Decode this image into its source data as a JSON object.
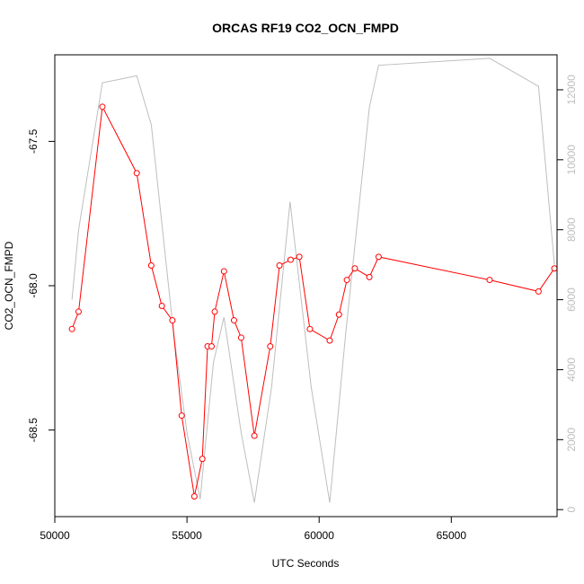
{
  "chart_data": {
    "type": "line",
    "title": "ORCAS RF19 CO2_OCN_FMPD",
    "xlabel": "UTC Seconds",
    "ylabel": "CO2_OCN_FMPD",
    "xlim": [
      50000,
      69000
    ],
    "ylim": [
      -68.8,
      -67.2
    ],
    "y2lim": [
      -200,
      13000
    ],
    "x_ticks": [
      50000,
      55000,
      60000,
      65000
    ],
    "x_tick_labels": [
      "50000",
      "55000",
      "60000",
      "65000"
    ],
    "y_ticks": [
      -68.5,
      -68.0,
      -67.5
    ],
    "y_tick_labels": [
      "-68.5",
      "-68.0",
      "-67.5"
    ],
    "y2_ticks": [
      0,
      2000,
      4000,
      6000,
      8000,
      10000,
      12000
    ],
    "y2_tick_labels": [
      "0",
      "2000",
      "4000",
      "6000",
      "8000",
      "10000",
      "12000"
    ],
    "grid": false,
    "series": [
      {
        "axis": "left",
        "color": "#ff0000",
        "marker": "open-circle",
        "x": [
          50650,
          50900,
          51800,
          53100,
          53650,
          54050,
          54450,
          54800,
          55280,
          55580,
          55780,
          55930,
          56050,
          56400,
          56780,
          57050,
          57550,
          58150,
          58500,
          58920,
          59250,
          59650,
          60400,
          60750,
          61050,
          61350,
          61900,
          62250,
          66450,
          68300,
          68900
        ],
        "y": [
          -68.15,
          -68.09,
          -67.38,
          -67.61,
          -67.93,
          -68.07,
          -68.12,
          -68.45,
          -68.73,
          -68.6,
          -68.21,
          -68.21,
          -68.09,
          -67.95,
          -68.12,
          -68.18,
          -68.52,
          -68.21,
          -67.93,
          -67.91,
          -67.9,
          -68.15,
          -68.19,
          -68.1,
          -67.98,
          -67.94,
          -67.97,
          -67.9,
          -67.98,
          -68.02,
          -67.94
        ]
      },
      {
        "axis": "right",
        "color": "#bebebe",
        "marker": "none",
        "x": [
          50650,
          50900,
          51800,
          53100,
          53650,
          54500,
          55000,
          55500,
          56000,
          56400,
          57050,
          57550,
          58200,
          58900,
          59700,
          60400,
          61000,
          61900,
          62250,
          66450,
          68300,
          68900
        ],
        "y": [
          6000,
          8000,
          12200,
          12400,
          11000,
          5000,
          2200,
          300,
          4200,
          5500,
          2200,
          200,
          3500,
          8800,
          3500,
          200,
          5000,
          11500,
          12700,
          12900,
          12100,
          7000
        ]
      }
    ]
  }
}
